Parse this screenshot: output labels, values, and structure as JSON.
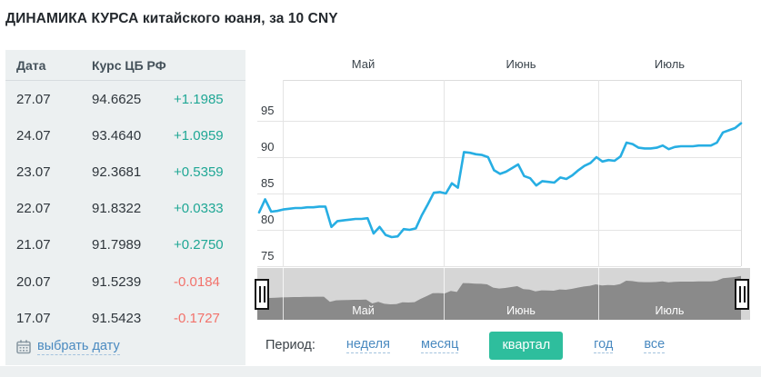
{
  "title": "ДИНАМИКА КУРСА китайского юаня, за 10 CNY",
  "table": {
    "headers": [
      "Дата",
      "Курс ЦБ РФ"
    ],
    "rows": [
      {
        "date": "27.07",
        "rate": "94.6625",
        "change": "+1.1985",
        "direction": "up"
      },
      {
        "date": "24.07",
        "rate": "93.4640",
        "change": "+1.0959",
        "direction": "up"
      },
      {
        "date": "23.07",
        "rate": "92.3681",
        "change": "+0.5359",
        "direction": "up"
      },
      {
        "date": "22.07",
        "rate": "91.8322",
        "change": "+0.0333",
        "direction": "up"
      },
      {
        "date": "21.07",
        "rate": "91.7989",
        "change": "+0.2750",
        "direction": "up"
      },
      {
        "date": "20.07",
        "rate": "91.5239",
        "change": "-0.0184",
        "direction": "down"
      },
      {
        "date": "17.07",
        "rate": "91.5423",
        "change": "-0.1727",
        "direction": "down"
      }
    ],
    "pick_date_label": "выбрать дату"
  },
  "period": {
    "label": "Период:",
    "options": [
      {
        "id": "week",
        "label": "неделя",
        "selected": false
      },
      {
        "id": "month",
        "label": "месяц",
        "selected": false
      },
      {
        "id": "quarter",
        "label": "квартал",
        "selected": true
      },
      {
        "id": "year",
        "label": "год",
        "selected": false
      },
      {
        "id": "all",
        "label": "все",
        "selected": false
      }
    ]
  },
  "icons": {
    "pick_date": "calendar-icon",
    "navigator_handles": "drag-grip-icon"
  },
  "colors": {
    "up_green": "#1FA795",
    "down_red": "#F2726B",
    "link_blue": "#4A8AC0",
    "selected_period_teal": "#2EBE9D",
    "chart_line_blue": "#27AEE3",
    "navigator_fill_gray": "#8A8A8A",
    "navigator_bg_gray": "#D6D6D6",
    "panel_bg_gray": "#ECF0F1"
  },
  "chart_data": {
    "type": "line",
    "title": "Курс ЦБ РФ за 10 CNY, квартал",
    "x_month_labels": [
      "Май",
      "Июнь",
      "Июль"
    ],
    "y_ticks": [
      75,
      80,
      85,
      90,
      95
    ],
    "ylim": [
      73,
      100.5
    ],
    "grid": true,
    "legend": "none",
    "series": [
      {
        "name": "Курс ЦБ РФ",
        "values": [
          82.4,
          84.2,
          82.5,
          82.6,
          82.8,
          82.9,
          83.0,
          83.0,
          83.1,
          83.1,
          83.2,
          83.2,
          80.4,
          81.2,
          81.3,
          81.4,
          81.5,
          81.5,
          81.6,
          79.5,
          80.4,
          79.3,
          79.0,
          79.1,
          80.1,
          80.0,
          80.2,
          82.0,
          83.5,
          85.1,
          85.2,
          85.0,
          86.4,
          85.8,
          90.7,
          90.6,
          90.4,
          90.3,
          90.0,
          88.2,
          87.7,
          88.0,
          88.5,
          89.0,
          87.4,
          87.1,
          86.1,
          86.7,
          86.6,
          86.5,
          87.2,
          87.0,
          87.5,
          88.2,
          88.8,
          89.2,
          90.0,
          89.4,
          89.6,
          89.5,
          90.1,
          92.0,
          91.8,
          91.3,
          91.2,
          91.2,
          91.3,
          91.6,
          91.1,
          91.4,
          91.5,
          91.5,
          91.5,
          91.6,
          91.6,
          91.6,
          92.0,
          93.4,
          93.7,
          94.0,
          94.66
        ]
      }
    ],
    "navigator": {
      "month_labels": [
        "Май",
        "Июнь",
        "Июль"
      ]
    }
  }
}
